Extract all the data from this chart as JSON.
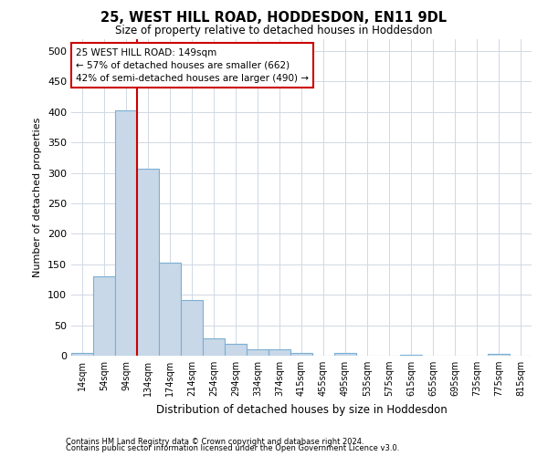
{
  "title": "25, WEST HILL ROAD, HODDESDON, EN11 9DL",
  "subtitle": "Size of property relative to detached houses in Hoddesdon",
  "xlabel": "Distribution of detached houses by size in Hoddesdon",
  "ylabel": "Number of detached properties",
  "footnote1": "Contains HM Land Registry data © Crown copyright and database right 2024.",
  "footnote2": "Contains public sector information licensed under the Open Government Licence v3.0.",
  "bin_labels": [
    "14sqm",
    "54sqm",
    "94sqm",
    "134sqm",
    "174sqm",
    "214sqm",
    "254sqm",
    "294sqm",
    "334sqm",
    "374sqm",
    "415sqm",
    "455sqm",
    "495sqm",
    "535sqm",
    "575sqm",
    "615sqm",
    "655sqm",
    "695sqm",
    "735sqm",
    "775sqm",
    "815sqm"
  ],
  "bar_values": [
    5,
    130,
    403,
    307,
    152,
    91,
    29,
    19,
    10,
    10,
    5,
    0,
    5,
    0,
    0,
    2,
    0,
    0,
    0,
    3,
    0
  ],
  "bar_color": "#c8d8e8",
  "bar_edge_color": "#7bafd4",
  "property_line_color": "#cc0000",
  "annotation_text": "25 WEST HILL ROAD: 149sqm\n← 57% of detached houses are smaller (662)\n42% of semi-detached houses are larger (490) →",
  "annotation_box_color": "#ffffff",
  "annotation_box_edge": "#cc0000",
  "ylim": [
    0,
    520
  ],
  "yticks": [
    0,
    50,
    100,
    150,
    200,
    250,
    300,
    350,
    400,
    450,
    500
  ],
  "background_color": "#ffffff",
  "grid_color": "#d0d8e4"
}
